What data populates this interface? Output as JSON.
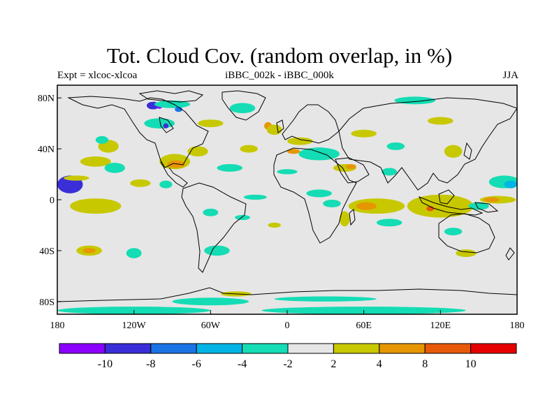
{
  "title": "Tot. Cloud Cov. (random overlap, in %)",
  "subtitle_left": "Expt = xlcoc-xlcoa",
  "subtitle_center": "iBBC_002k - iBBC_000k",
  "subtitle_right": "JJA",
  "map": {
    "lon_range": [
      -180,
      180
    ],
    "lat_range": [
      -90,
      90
    ],
    "x_ticks": [
      {
        "lon": -180,
        "label": "180"
      },
      {
        "lon": -120,
        "label": "120W"
      },
      {
        "lon": -60,
        "label": "60W"
      },
      {
        "lon": 0,
        "label": "0"
      },
      {
        "lon": 60,
        "label": "60E"
      },
      {
        "lon": 120,
        "label": "120E"
      },
      {
        "lon": 180,
        "label": "180"
      }
    ],
    "y_ticks": [
      {
        "lat": 80,
        "label": "80N"
      },
      {
        "lat": 40,
        "label": "40N"
      },
      {
        "lat": 0,
        "label": "0"
      },
      {
        "lat": -40,
        "label": "40S"
      },
      {
        "lat": -80,
        "label": "80S"
      }
    ],
    "background_color": "#e6e6e6",
    "features": [
      {
        "name": "n-pacific-tropic-cyan",
        "lon": -170,
        "lat": 12,
        "rx": 10,
        "ry": 7,
        "level": 1
      },
      {
        "name": "n-pacific-yellow",
        "lon": -165,
        "lat": 17,
        "rx": 10,
        "ry": 2,
        "level": 6
      },
      {
        "name": "e-pacific-orange",
        "lon": -155,
        "lat": -6,
        "rx": 14,
        "ry": 3,
        "level": 7
      },
      {
        "name": "e-pacific-yellow",
        "lon": -150,
        "lat": -5,
        "rx": 20,
        "ry": 6,
        "level": 6
      },
      {
        "name": "pacific-yellow-1",
        "lon": -150,
        "lat": 30,
        "rx": 12,
        "ry": 4,
        "level": 6
      },
      {
        "name": "pacific-cyan-1",
        "lon": -135,
        "lat": 25,
        "rx": 8,
        "ry": 4,
        "level": 4
      },
      {
        "name": "pacific-yellow-2",
        "lon": -140,
        "lat": 42,
        "rx": 8,
        "ry": 5,
        "level": 6
      },
      {
        "name": "pacific-cyan-2",
        "lon": -145,
        "lat": 47,
        "rx": 5,
        "ry": 3,
        "level": 4
      },
      {
        "name": "pacific-yellow-3",
        "lon": -115,
        "lat": 13,
        "rx": 8,
        "ry": 3,
        "level": 6
      },
      {
        "name": "pacific-cyan-3",
        "lon": -95,
        "lat": 12,
        "rx": 5,
        "ry": 3,
        "level": 4
      },
      {
        "name": "s-pacific-cyan",
        "lon": -120,
        "lat": -42,
        "rx": 6,
        "ry": 4,
        "level": 4
      },
      {
        "name": "s-pacific-yellow",
        "lon": -155,
        "lat": -40,
        "rx": 10,
        "ry": 4,
        "level": 6
      },
      {
        "name": "s-pacific-orange",
        "lon": -155,
        "lat": -40,
        "rx": 5,
        "ry": 2,
        "level": 7
      },
      {
        "name": "gulf-yellow",
        "lon": -88,
        "lat": 30,
        "rx": 12,
        "ry": 6,
        "level": 6
      },
      {
        "name": "gulf-orange",
        "lon": -87,
        "lat": 28,
        "rx": 7,
        "ry": 3,
        "level": 7
      },
      {
        "name": "us-east-yellow",
        "lon": -70,
        "lat": 38,
        "rx": 8,
        "ry": 4,
        "level": 6
      },
      {
        "name": "canada-cyan",
        "lon": -100,
        "lat": 60,
        "rx": 12,
        "ry": 4,
        "level": 4
      },
      {
        "name": "canada-yellow",
        "lon": -60,
        "lat": 60,
        "rx": 10,
        "ry": 3,
        "level": 6
      },
      {
        "name": "arctic-blue-1",
        "lon": -105,
        "lat": 74,
        "rx": 5,
        "ry": 3,
        "level": 1
      },
      {
        "name": "arctic-purple",
        "lon": -100,
        "lat": 73,
        "rx": 2,
        "ry": 1.5,
        "level": 0
      },
      {
        "name": "arctic-cyan",
        "lon": -90,
        "lat": 75,
        "rx": 14,
        "ry": 3,
        "level": 4
      },
      {
        "name": "arctic-blue-2",
        "lon": -85,
        "lat": 71,
        "rx": 3,
        "ry": 2,
        "level": 2
      },
      {
        "name": "hudson-blue",
        "lon": -95,
        "lat": 58,
        "rx": 2,
        "ry": 2,
        "level": 1
      },
      {
        "name": "greenland-cyan",
        "lon": -35,
        "lat": 72,
        "rx": 10,
        "ry": 4,
        "level": 4
      },
      {
        "name": "atlantic-cyan-1",
        "lon": -45,
        "lat": 25,
        "rx": 10,
        "ry": 3,
        "level": 4
      },
      {
        "name": "atlantic-yellow-1",
        "lon": -30,
        "lat": 40,
        "rx": 7,
        "ry": 3,
        "level": 6
      },
      {
        "name": "atlantic-orange-1",
        "lon": -15,
        "lat": 58,
        "rx": 3,
        "ry": 3,
        "level": 7
      },
      {
        "name": "n-atlantic-yellow",
        "lon": -10,
        "lat": 55,
        "rx": 6,
        "ry": 4,
        "level": 6
      },
      {
        "name": "trop-atlantic-cyan",
        "lon": -25,
        "lat": 2,
        "rx": 9,
        "ry": 2,
        "level": 4
      },
      {
        "name": "s-atlantic-cyan-1",
        "lon": -35,
        "lat": -14,
        "rx": 6,
        "ry": 2,
        "level": 4
      },
      {
        "name": "s-atlantic-yellow",
        "lon": -10,
        "lat": -20,
        "rx": 5,
        "ry": 2,
        "level": 6
      },
      {
        "name": "s-america-cyan",
        "lon": -55,
        "lat": -40,
        "rx": 10,
        "ry": 4,
        "level": 4
      },
      {
        "name": "amazon-cyan",
        "lon": -60,
        "lat": -10,
        "rx": 6,
        "ry": 3,
        "level": 4
      },
      {
        "name": "med-blue",
        "lon": 25,
        "lat": 37,
        "rx": 10,
        "ry": 4,
        "level": 3
      },
      {
        "name": "med-cyan",
        "lon": 25,
        "lat": 36,
        "rx": 16,
        "ry": 5,
        "level": 4
      },
      {
        "name": "med-orange",
        "lon": 5,
        "lat": 38,
        "rx": 5,
        "ry": 2,
        "level": 7
      },
      {
        "name": "europe-yellow",
        "lon": 10,
        "lat": 46,
        "rx": 10,
        "ry": 3,
        "level": 6
      },
      {
        "name": "sahara-cyan",
        "lon": 0,
        "lat": 22,
        "rx": 8,
        "ry": 2,
        "level": 4
      },
      {
        "name": "africa-cyan-1",
        "lon": 25,
        "lat": 5,
        "rx": 10,
        "ry": 3,
        "level": 4
      },
      {
        "name": "africa-cyan-2",
        "lon": 35,
        "lat": -3,
        "rx": 7,
        "ry": 3,
        "level": 4
      },
      {
        "name": "madagascar-yellow",
        "lon": 45,
        "lat": -15,
        "rx": 4,
        "ry": 6,
        "level": 6
      },
      {
        "name": "arabia-yellow",
        "lon": 45,
        "lat": 25,
        "rx": 9,
        "ry": 3,
        "level": 6
      },
      {
        "name": "arabia-orange",
        "lon": 50,
        "lat": 26,
        "rx": 4,
        "ry": 2,
        "level": 7
      },
      {
        "name": "indian-ocean-yellow",
        "lon": 70,
        "lat": -5,
        "rx": 22,
        "ry": 6,
        "level": 6
      },
      {
        "name": "indian-ocean-orange",
        "lon": 62,
        "lat": -5,
        "rx": 8,
        "ry": 3,
        "level": 7
      },
      {
        "name": "indian-ocean-cyan",
        "lon": 80,
        "lat": -18,
        "rx": 10,
        "ry": 3,
        "level": 4
      },
      {
        "name": "india-cyan",
        "lon": 80,
        "lat": 22,
        "rx": 6,
        "ry": 3,
        "level": 4
      },
      {
        "name": "asia-cyan-1",
        "lon": 85,
        "lat": 42,
        "rx": 7,
        "ry": 3,
        "level": 4
      },
      {
        "name": "asia-yellow-1",
        "lon": 60,
        "lat": 52,
        "rx": 10,
        "ry": 3,
        "level": 6
      },
      {
        "name": "siberia-cyan",
        "lon": 100,
        "lat": 78,
        "rx": 16,
        "ry": 3,
        "level": 4
      },
      {
        "name": "siberia-yellow",
        "lon": 120,
        "lat": 62,
        "rx": 10,
        "ry": 3,
        "level": 6
      },
      {
        "name": "e-asia-yellow",
        "lon": 130,
        "lat": 38,
        "rx": 7,
        "ry": 5,
        "level": 6
      },
      {
        "name": "maritime-orange",
        "lon": 115,
        "lat": -8,
        "rx": 18,
        "ry": 5,
        "level": 7
      },
      {
        "name": "maritime-yellow",
        "lon": 120,
        "lat": -5,
        "rx": 26,
        "ry": 9,
        "level": 6
      },
      {
        "name": "maritime-red",
        "lon": 112,
        "lat": -7,
        "rx": 3,
        "ry": 2,
        "level": 8
      },
      {
        "name": "w-pacific-cyan",
        "lon": 150,
        "lat": -5,
        "rx": 8,
        "ry": 3,
        "level": 4
      },
      {
        "name": "w-pacific-cyan-2",
        "lon": 170,
        "lat": 14,
        "rx": 12,
        "ry": 5,
        "level": 4
      },
      {
        "name": "w-pacific-blue",
        "lon": 175,
        "lat": 12,
        "rx": 5,
        "ry": 3,
        "level": 3
      },
      {
        "name": "w-pacific-yellow",
        "lon": 165,
        "lat": 0,
        "rx": 14,
        "ry": 3,
        "level": 6
      },
      {
        "name": "w-pacific-orange",
        "lon": 160,
        "lat": 0,
        "rx": 6,
        "ry": 2,
        "level": 7
      },
      {
        "name": "australia-cyan",
        "lon": 130,
        "lat": -25,
        "rx": 7,
        "ry": 3,
        "level": 4
      },
      {
        "name": "s-ocean-yellow",
        "lon": 140,
        "lat": -42,
        "rx": 8,
        "ry": 3,
        "level": 6
      },
      {
        "name": "antarctic-cyan-1",
        "lon": -120,
        "lat": -87,
        "rx": 60,
        "ry": 3,
        "level": 4
      },
      {
        "name": "antarctic-cyan-2",
        "lon": 60,
        "lat": -87,
        "rx": 80,
        "ry": 3,
        "level": 4
      },
      {
        "name": "antarctic-cyan-3",
        "lon": -60,
        "lat": -80,
        "rx": 30,
        "ry": 3,
        "level": 4
      },
      {
        "name": "s-ocean-cyan",
        "lon": 30,
        "lat": -78,
        "rx": 40,
        "ry": 2,
        "level": 4
      },
      {
        "name": "s-ocean-yellow-2",
        "lon": -40,
        "lat": -74,
        "rx": 12,
        "ry": 2,
        "level": 6
      }
    ]
  },
  "colorbar": {
    "colors": [
      "#8b00ff",
      "#3a2ed8",
      "#1c73e6",
      "#00b4e6",
      "#14dcb4",
      "#e6e6e6",
      "#c8c800",
      "#e69600",
      "#e65a0a",
      "#e60000"
    ],
    "labels": [
      "-10",
      "-8",
      "-6",
      "-4",
      "-2",
      "2",
      "4",
      "8",
      "10"
    ]
  }
}
